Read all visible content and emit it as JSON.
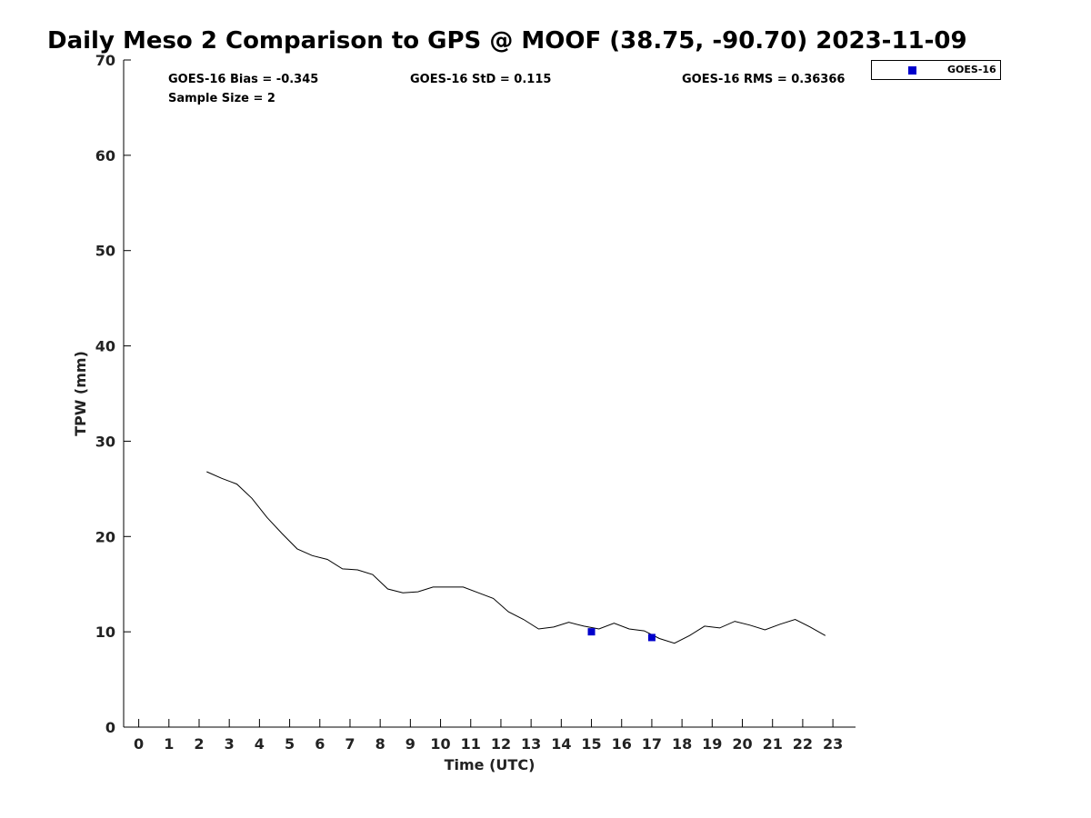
{
  "chart_data": {
    "type": "line",
    "title": "Daily Meso 2 Comparison to GPS @ MOOF (38.75, -90.70) 2023-11-09",
    "xlabel": "Time (UTC)",
    "ylabel": "TPW (mm)",
    "xlim": [
      -0.5,
      23.75
    ],
    "ylim": [
      0,
      70
    ],
    "xticks": [
      0,
      1,
      2,
      3,
      4,
      5,
      6,
      7,
      8,
      9,
      10,
      11,
      12,
      13,
      14,
      15,
      16,
      17,
      18,
      19,
      20,
      21,
      22,
      23
    ],
    "yticks": [
      0,
      10,
      20,
      30,
      40,
      50,
      60,
      70
    ],
    "grid": false,
    "legend_position": "top-right",
    "stats": {
      "bias": "GOES-16 Bias = -0.345",
      "std": "GOES-16 StD = 0.115",
      "rms": "GOES-16 RMS = 0.36366",
      "sample": "Sample Size = 2"
    },
    "series": [
      {
        "kind": "line",
        "color": "#000000",
        "points": [
          [
            2.25,
            26.8
          ],
          [
            2.75,
            26.1
          ],
          [
            3.25,
            25.5
          ],
          [
            3.75,
            24.0
          ],
          [
            4.25,
            22.0
          ],
          [
            4.75,
            20.3
          ],
          [
            5.25,
            18.7
          ],
          [
            5.75,
            18.0
          ],
          [
            6.25,
            17.6
          ],
          [
            6.75,
            16.6
          ],
          [
            7.25,
            16.5
          ],
          [
            7.75,
            16.0
          ],
          [
            8.25,
            14.5
          ],
          [
            8.75,
            14.1
          ],
          [
            9.25,
            14.2
          ],
          [
            9.75,
            14.7
          ],
          [
            10.25,
            14.7
          ],
          [
            10.75,
            14.7
          ],
          [
            11.25,
            14.1
          ],
          [
            11.75,
            13.5
          ],
          [
            12.25,
            12.1
          ],
          [
            12.75,
            11.3
          ],
          [
            13.25,
            10.3
          ],
          [
            13.75,
            10.5
          ],
          [
            14.25,
            11.0
          ],
          [
            14.75,
            10.6
          ],
          [
            15.25,
            10.3
          ],
          [
            15.75,
            10.9
          ],
          [
            16.25,
            10.3
          ],
          [
            16.75,
            10.1
          ],
          [
            17.25,
            9.3
          ],
          [
            17.75,
            8.8
          ],
          [
            18.25,
            9.6
          ],
          [
            18.75,
            10.6
          ],
          [
            19.25,
            10.4
          ],
          [
            19.75,
            11.1
          ],
          [
            20.25,
            10.7
          ],
          [
            20.75,
            10.2
          ],
          [
            21.25,
            10.8
          ],
          [
            21.75,
            11.3
          ],
          [
            22.25,
            10.5
          ],
          [
            22.75,
            9.6
          ]
        ]
      },
      {
        "name": "GOES-16",
        "kind": "scatter",
        "color": "#0000cc",
        "marker": "square",
        "points": [
          [
            15,
            10.0
          ],
          [
            17,
            9.4
          ]
        ]
      }
    ]
  }
}
